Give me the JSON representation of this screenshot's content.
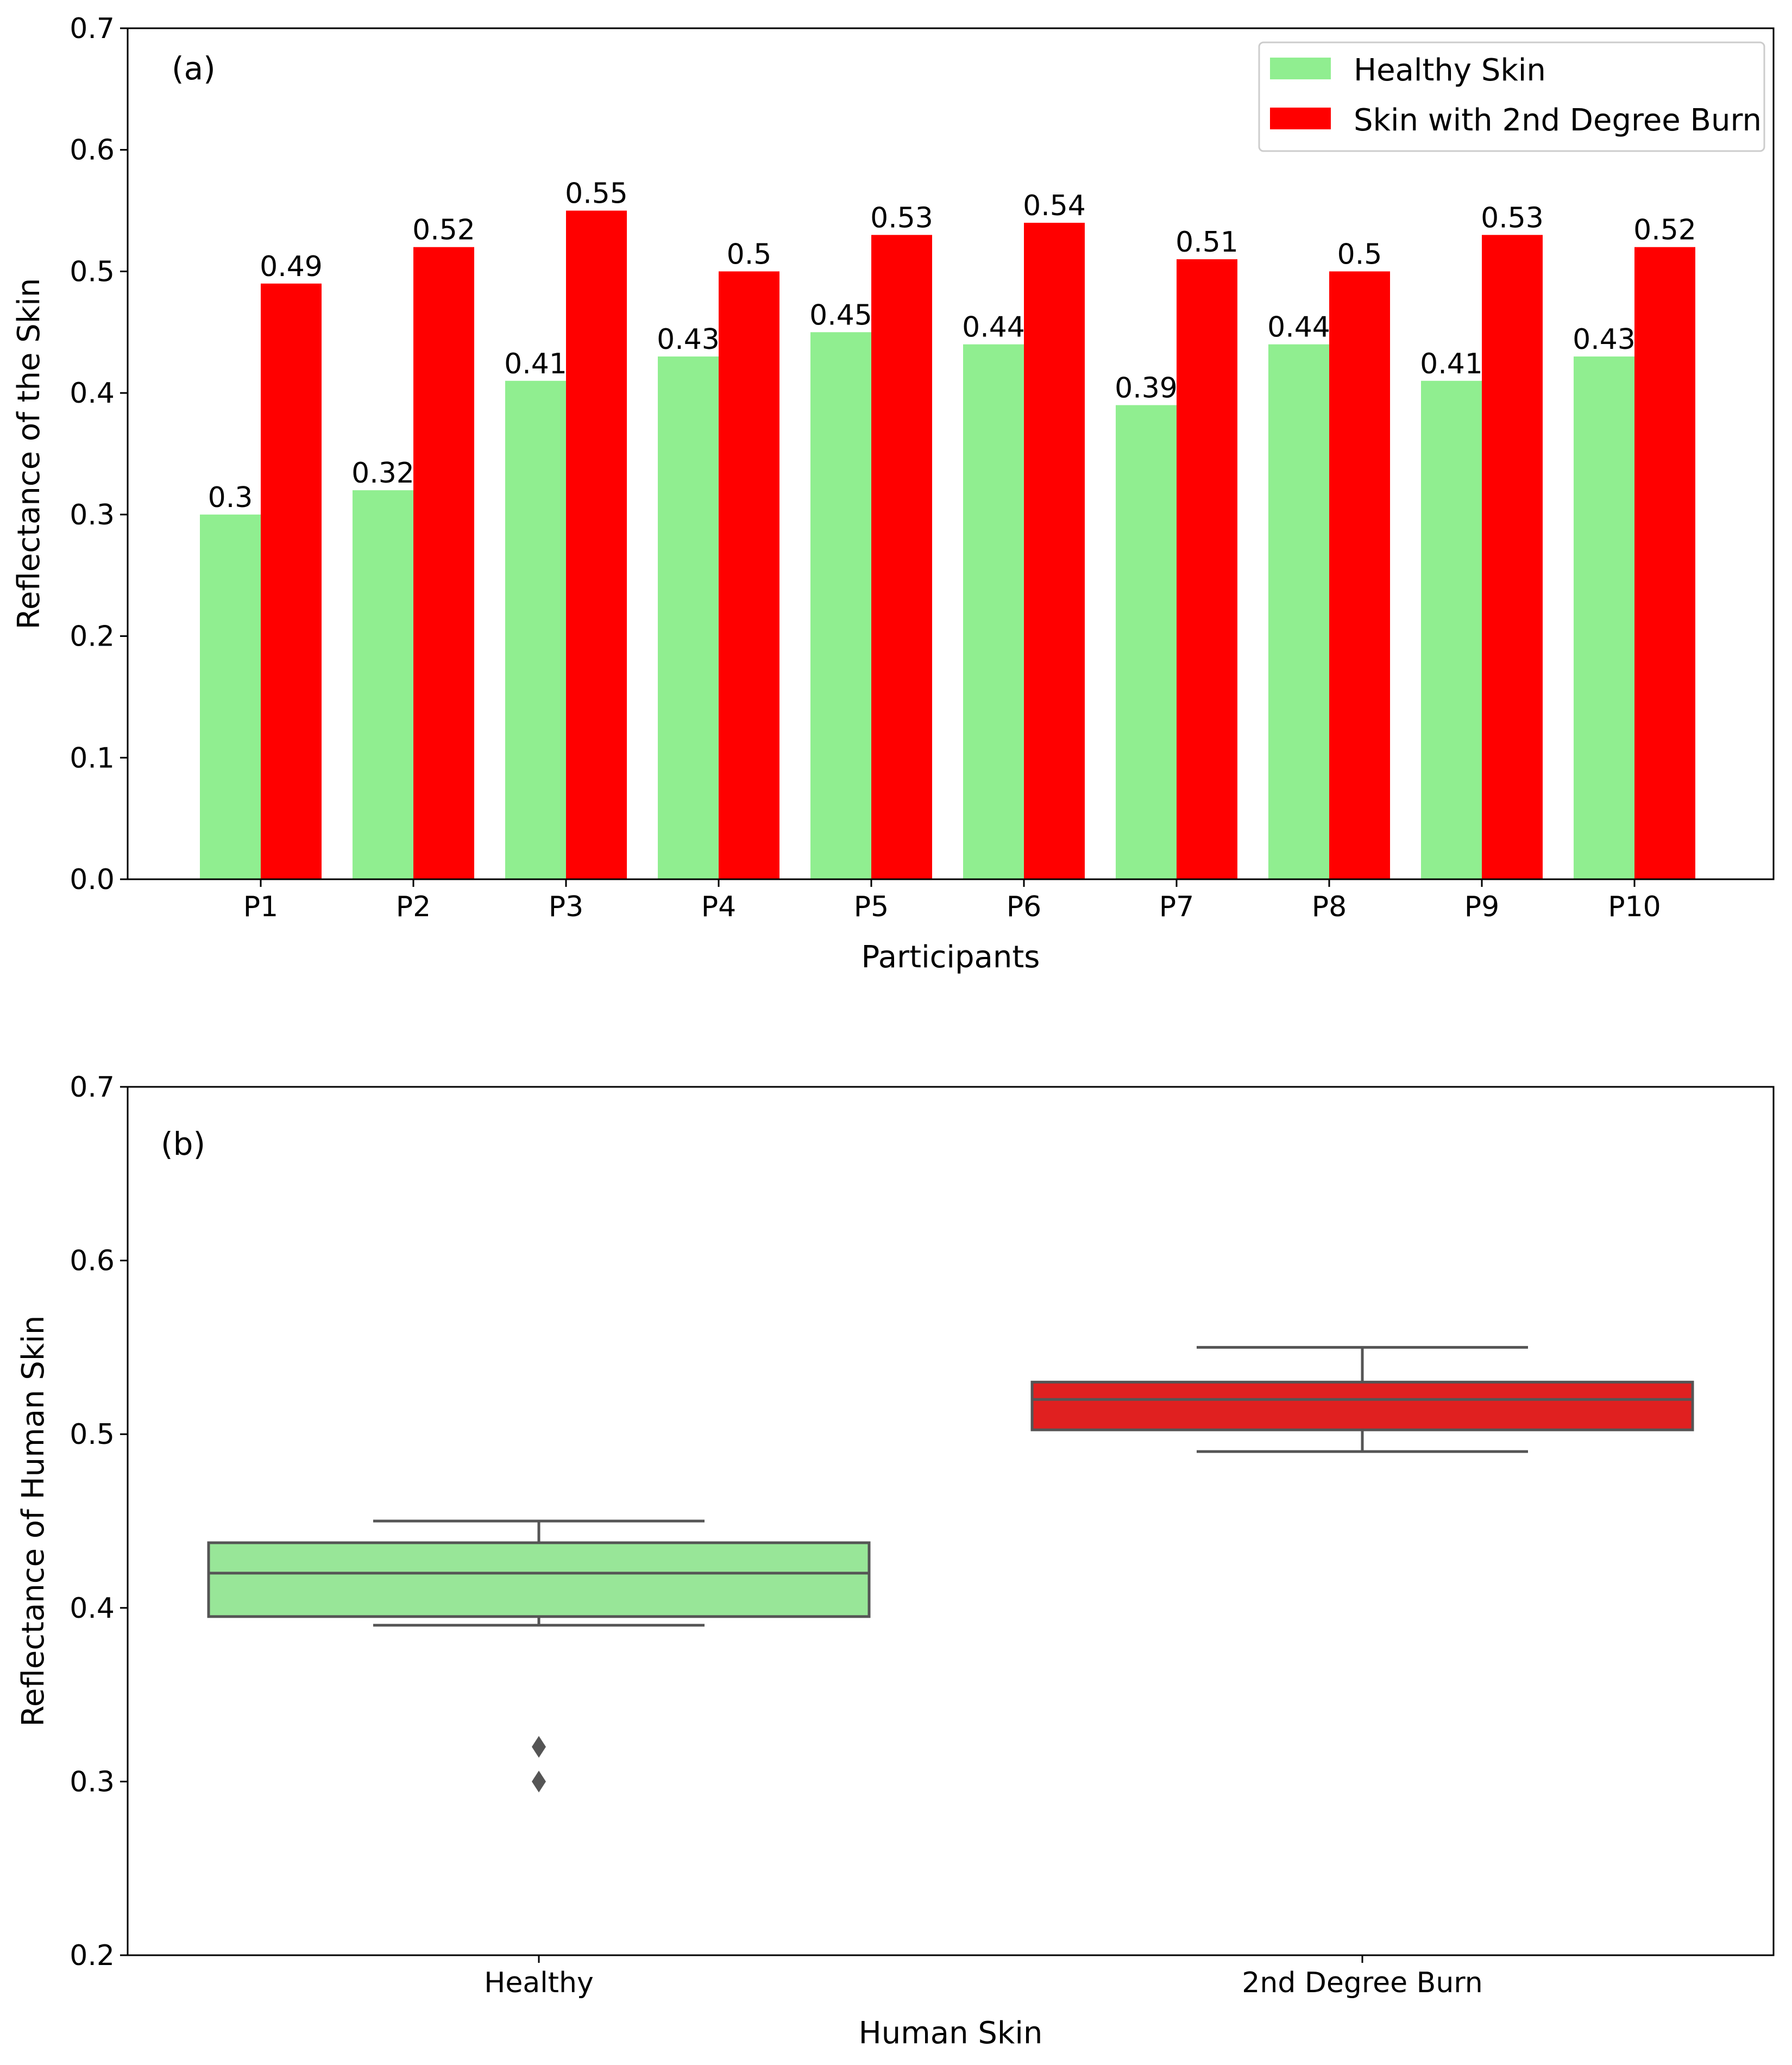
{
  "chart_data": [
    {
      "type": "bar",
      "panel_label": "(a)",
      "title": "",
      "xlabel": "Participants",
      "ylabel": "Reflectance of the Skin",
      "ylim": [
        0.0,
        0.7
      ],
      "yticks": [
        "0.0",
        "0.1",
        "0.2",
        "0.3",
        "0.4",
        "0.5",
        "0.6",
        "0.7"
      ],
      "categories": [
        "P1",
        "P2",
        "P3",
        "P4",
        "P5",
        "P6",
        "P7",
        "P8",
        "P9",
        "P10"
      ],
      "legend_position": "top-right",
      "series": [
        {
          "name": "Healthy Skin",
          "color": "#90ee90",
          "values": [
            0.3,
            0.32,
            0.41,
            0.43,
            0.45,
            0.44,
            0.39,
            0.44,
            0.41,
            0.43
          ],
          "labels": [
            "0.3",
            "0.32",
            "0.41",
            "0.43",
            "0.45",
            "0.44",
            "0.39",
            "0.44",
            "0.41",
            "0.43"
          ]
        },
        {
          "name": "Skin with 2nd Degree Burn",
          "color": "#ff0000",
          "values": [
            0.49,
            0.52,
            0.55,
            0.5,
            0.53,
            0.54,
            0.51,
            0.5,
            0.53,
            0.52
          ],
          "labels": [
            "0.49",
            "0.52",
            "0.55",
            "0.5",
            "0.53",
            "0.54",
            "0.51",
            "0.5",
            "0.53",
            "0.52"
          ]
        }
      ]
    },
    {
      "type": "box",
      "panel_label": "(b)",
      "title": "",
      "xlabel": "Human Skin",
      "ylabel": "Reflectance of Human Skin",
      "ylim": [
        0.2,
        0.7
      ],
      "yticks": [
        "0.2",
        "0.3",
        "0.4",
        "0.5",
        "0.6",
        "0.7"
      ],
      "categories": [
        "Healthy",
        "2nd Degree Burn"
      ],
      "boxes": [
        {
          "name": "Healthy",
          "color": "#98e698",
          "whisker_low": 0.39,
          "q1": 0.395,
          "median": 0.42,
          "q3": 0.4375,
          "whisker_high": 0.45,
          "outliers": [
            0.3,
            0.32
          ]
        },
        {
          "name": "2nd Degree Burn",
          "color": "#e02020",
          "whisker_low": 0.49,
          "q1": 0.5025,
          "median": 0.52,
          "q3": 0.53,
          "whisker_high": 0.55,
          "outliers": []
        }
      ]
    }
  ]
}
